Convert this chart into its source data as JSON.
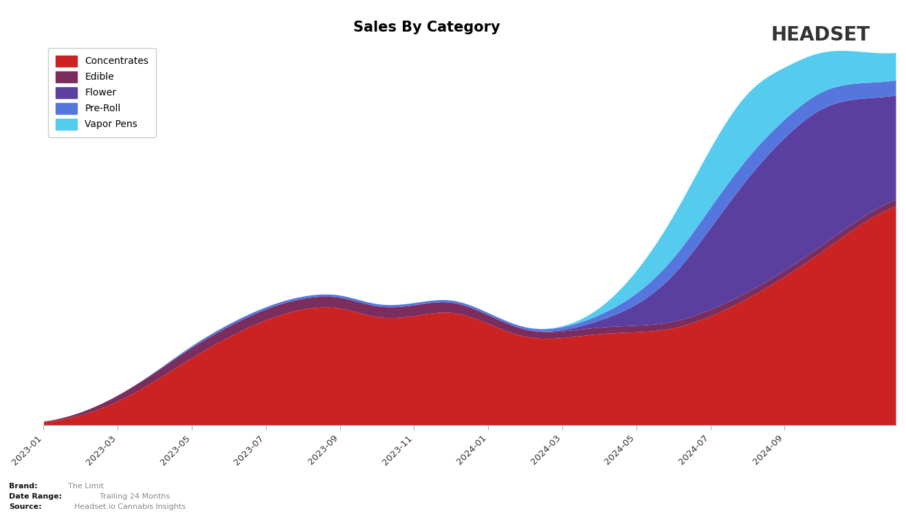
{
  "title": "Sales By Category",
  "title_fontsize": 15,
  "categories": [
    "Concentrates",
    "Edible",
    "Flower",
    "Pre-Roll",
    "Vapor Pens"
  ],
  "colors": [
    "#cc2222",
    "#7b2d5e",
    "#5a3fa0",
    "#5577dd",
    "#55ccee"
  ],
  "x_labels": [
    "2023-01",
    "2023-03",
    "2023-05",
    "2023-07",
    "2023-09",
    "2023-11",
    "2024-01",
    "2024-03",
    "2024-05",
    "2024-07",
    "2024-09"
  ],
  "brand_text": "The Limit",
  "daterange_text": "Trailing 24 Months",
  "source_text": "Headset.io Cannabis Insights",
  "background_color": "#ffffff",
  "concentrates": [
    0.005,
    0.04,
    0.1,
    0.2,
    0.32,
    0.41,
    0.5,
    0.54,
    0.58,
    0.46,
    0.5,
    0.56,
    0.47,
    0.38,
    0.4,
    0.43,
    0.43,
    0.43,
    0.5,
    0.58,
    0.68,
    0.8,
    0.92,
    1.05
  ],
  "edible": [
    0.0,
    0.01,
    0.03,
    0.04,
    0.05,
    0.05,
    0.05,
    0.05,
    0.05,
    0.05,
    0.05,
    0.05,
    0.04,
    0.03,
    0.03,
    0.03,
    0.03,
    0.03,
    0.03,
    0.03,
    0.03,
    0.03,
    0.03,
    0.03
  ],
  "flower": [
    0.0,
    0.0,
    0.0,
    0.0,
    0.0,
    0.0,
    0.0,
    0.0,
    0.0,
    0.0,
    0.0,
    0.0,
    0.0,
    0.0,
    0.0,
    0.02,
    0.08,
    0.2,
    0.38,
    0.55,
    0.62,
    0.68,
    0.55,
    0.45
  ],
  "preroll": [
    0.0,
    0.0,
    0.0,
    0.0,
    0.01,
    0.01,
    0.01,
    0.01,
    0.01,
    0.01,
    0.01,
    0.01,
    0.01,
    0.01,
    0.01,
    0.02,
    0.05,
    0.08,
    0.1,
    0.1,
    0.08,
    0.08,
    0.07,
    0.07
  ],
  "vapor_pens": [
    0.0,
    0.0,
    0.0,
    0.0,
    0.0,
    0.0,
    0.0,
    0.0,
    0.0,
    0.0,
    0.0,
    0.0,
    0.0,
    0.0,
    0.0,
    0.01,
    0.1,
    0.2,
    0.28,
    0.35,
    0.22,
    0.18,
    0.14,
    0.12
  ]
}
